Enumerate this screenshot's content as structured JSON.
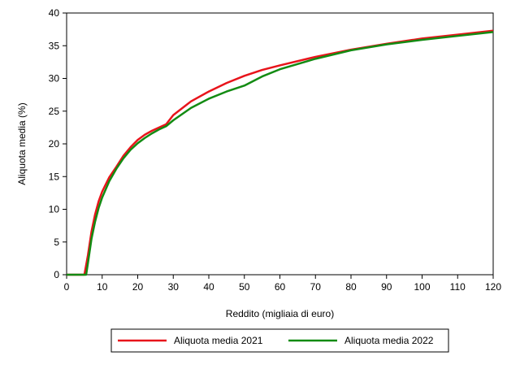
{
  "chart_data": {
    "type": "line",
    "title": "",
    "xlabel": "Reddito (migliaia di euro)",
    "ylabel": "Aliquota media (%)",
    "xlim": [
      0,
      120
    ],
    "ylim": [
      0,
      40
    ],
    "xticks": [
      0,
      10,
      20,
      30,
      40,
      50,
      60,
      70,
      80,
      90,
      100,
      110,
      120
    ],
    "yticks": [
      0,
      5,
      10,
      15,
      20,
      25,
      30,
      35,
      40
    ],
    "xtick_labels": [
      "0",
      "10",
      "20",
      "30",
      "40",
      "50",
      "60",
      "70",
      "80",
      "90",
      "100",
      "110",
      "120"
    ],
    "ytick_labels": [
      "0",
      "5",
      "10",
      "15",
      "20",
      "25",
      "30",
      "35",
      "40"
    ],
    "grid": false,
    "legend_position": "bottom",
    "series": [
      {
        "name": "Aliquota media 2021",
        "color": "#e8141b",
        "x": [
          0,
          5,
          6,
          7,
          8,
          9,
          10,
          12,
          14,
          16,
          18,
          20,
          22,
          24,
          26,
          28,
          30,
          35,
          40,
          45,
          50,
          55,
          60,
          70,
          80,
          90,
          100,
          110,
          120
        ],
        "y": [
          0,
          0,
          3.0,
          6.6,
          9.2,
          11.2,
          12.7,
          14.9,
          16.5,
          18.2,
          19.5,
          20.6,
          21.4,
          22.0,
          22.5,
          23.0,
          24.4,
          26.5,
          28.0,
          29.3,
          30.4,
          31.3,
          32.0,
          33.3,
          34.4,
          35.3,
          36.1,
          36.7,
          37.3
        ]
      },
      {
        "name": "Aliquota media 2022",
        "color": "#138b13",
        "x": [
          0,
          5.5,
          6,
          7,
          8,
          9,
          10,
          12,
          14,
          16,
          18,
          20,
          22,
          24,
          26,
          28,
          30,
          35,
          40,
          45,
          50,
          55,
          60,
          70,
          80,
          90,
          100,
          110,
          120
        ],
        "y": [
          0,
          0,
          1.8,
          5.5,
          8.1,
          10.2,
          11.8,
          14.3,
          16.2,
          17.8,
          19.1,
          20.1,
          20.9,
          21.6,
          22.2,
          22.7,
          23.6,
          25.5,
          26.9,
          28.0,
          28.9,
          30.3,
          31.4,
          33.0,
          34.3,
          35.2,
          35.9,
          36.5,
          37.1
        ]
      }
    ]
  }
}
